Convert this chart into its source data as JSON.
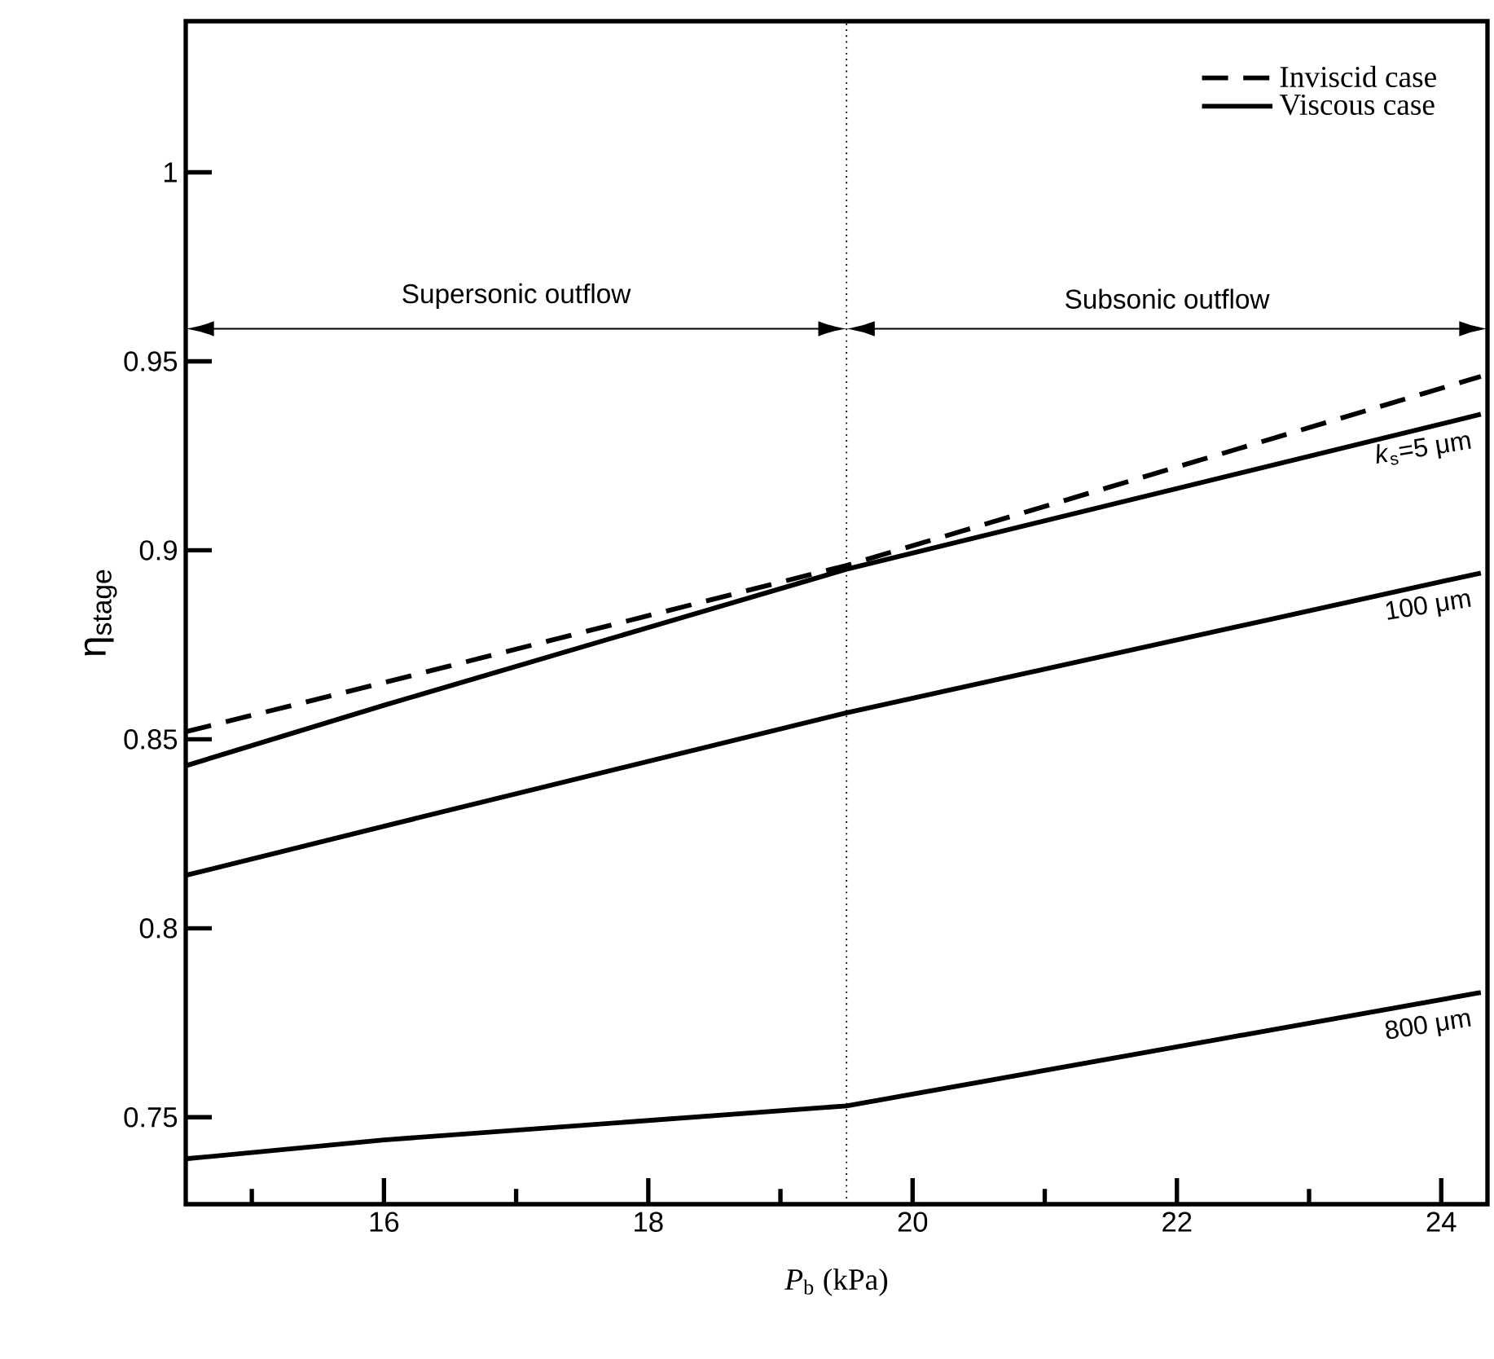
{
  "chart_data": {
    "type": "line",
    "xlabel": "*P*$_{b}$ (kPa)",
    "ylabel": "η$_{stage}$",
    "x": [
      14.5,
      16,
      19.5,
      24.3
    ],
    "series": [
      {
        "name": "Inviscid case",
        "color": "#000000",
        "line_style": "dashed",
        "values": [
          0.852,
          0.865,
          0.896,
          0.946
        ]
      },
      {
        "name": "Viscous case",
        "color": "#000000",
        "line_style": "solid",
        "values": [
          0.843,
          0.859,
          0.895,
          0.936
        ]
      },
      {
        "color": "#000000",
        "line_style": "solid",
        "values": [
          0.814,
          0.827,
          0.857,
          0.894
        ]
      },
      {
        "color": "#000000",
        "line_style": "solid",
        "values": [
          0.739,
          0.744,
          0.753,
          0.783
        ]
      }
    ],
    "xlim": [
      14.5,
      24.35
    ],
    "ylim": [
      0.727,
      1.04
    ],
    "xticks": [
      {
        "value": 15,
        "label": null
      },
      16,
      {
        "value": 17,
        "label": null
      },
      18,
      {
        "value": 19,
        "label": null
      },
      20,
      {
        "value": 21,
        "label": null
      },
      22,
      {
        "value": 23,
        "label": null
      },
      24
    ],
    "yticks": [
      0.75,
      0.8,
      0.85,
      0.9,
      0.95,
      1
    ],
    "ref_lines": [
      {
        "axis": "x",
        "value": 19.5,
        "line_style": "dotted"
      }
    ],
    "annotations": [
      "Supersonic outflow",
      "Subsonic outflow",
      "*k*$_{s}$=5 μm",
      "100 μm",
      "800 μm"
    ],
    "legend": "top right",
    "grid": false
  }
}
